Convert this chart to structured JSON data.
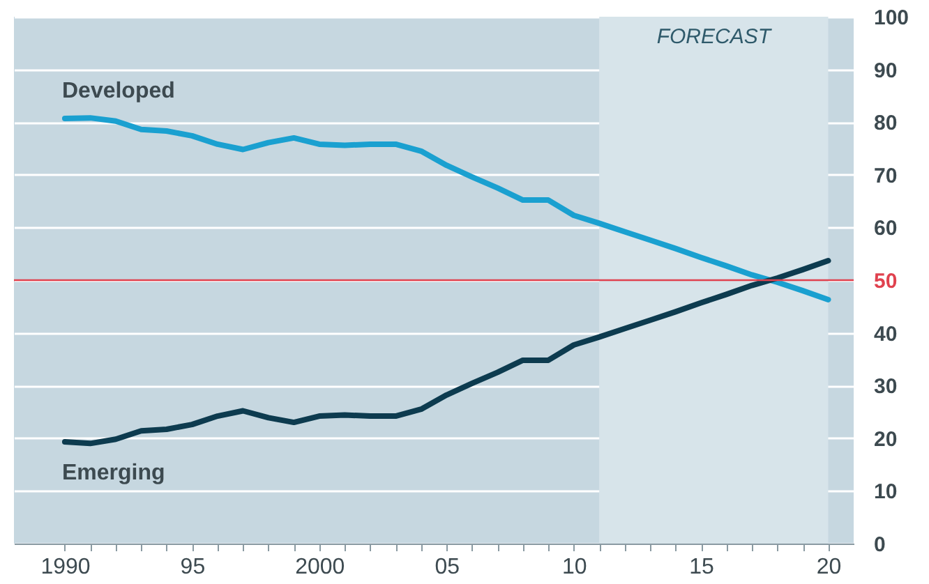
{
  "chart_data": {
    "type": "line",
    "x": [
      1990,
      1991,
      1992,
      1993,
      1994,
      1995,
      1996,
      1997,
      1998,
      1999,
      2000,
      2001,
      2002,
      2003,
      2004,
      2005,
      2006,
      2007,
      2008,
      2009,
      2010,
      2011,
      2012,
      2013,
      2014,
      2015,
      2016,
      2017,
      2018,
      2019,
      2020
    ],
    "series": [
      {
        "name": "Developed",
        "color": "#1aa0d0",
        "values": [
          80.7,
          80.8,
          80.2,
          78.6,
          78.3,
          77.4,
          75.8,
          74.8,
          76.1,
          77,
          75.8,
          75.6,
          75.8,
          75.8,
          74.5,
          71.8,
          69.6,
          67.5,
          65.2,
          65.2,
          62.3,
          60.8,
          59.2,
          57.6,
          56,
          54.3,
          52.7,
          51,
          49.6,
          48,
          46.3
        ]
      },
      {
        "name": "Emerging",
        "color": "#0d3b4f",
        "values": [
          19.3,
          19,
          19.8,
          21.4,
          21.7,
          22.6,
          24.2,
          25.2,
          23.9,
          23,
          24.2,
          24.4,
          24.2,
          24.2,
          25.5,
          28.2,
          30.4,
          32.5,
          34.8,
          34.8,
          37.7,
          39.2,
          40.8,
          42.4,
          44,
          45.7,
          47.3,
          49,
          50.4,
          52,
          53.7
        ]
      }
    ],
    "xlim": [
      1988,
      2021
    ],
    "xticks": [
      {
        "value": 1990,
        "label": "1990"
      },
      {
        "value": 1991,
        "label": null
      },
      {
        "value": 1992,
        "label": null
      },
      {
        "value": 1993,
        "label": null
      },
      {
        "value": 1994,
        "label": null
      },
      {
        "value": 1995,
        "label": "95"
      },
      {
        "value": 1996,
        "label": null
      },
      {
        "value": 1997,
        "label": null
      },
      {
        "value": 1998,
        "label": null
      },
      {
        "value": 1999,
        "label": null
      },
      {
        "value": 2000,
        "label": "2000"
      },
      {
        "value": 2001,
        "label": null
      },
      {
        "value": 2002,
        "label": null
      },
      {
        "value": 2003,
        "label": null
      },
      {
        "value": 2004,
        "label": null
      },
      {
        "value": 2005,
        "label": "05"
      },
      {
        "value": 2006,
        "label": null
      },
      {
        "value": 2007,
        "label": null
      },
      {
        "value": 2008,
        "label": null
      },
      {
        "value": 2009,
        "label": null
      },
      {
        "value": 2010,
        "label": "10"
      },
      {
        "value": 2011,
        "label": null
      },
      {
        "value": 2012,
        "label": null
      },
      {
        "value": 2013,
        "label": null
      },
      {
        "value": 2014,
        "label": null
      },
      {
        "value": 2015,
        "label": "15"
      },
      {
        "value": 2016,
        "label": null
      },
      {
        "value": 2017,
        "label": null
      },
      {
        "value": 2018,
        "label": null
      },
      {
        "value": 2019,
        "label": null
      },
      {
        "value": 2020,
        "label": "20"
      }
    ],
    "ylim": [
      0,
      100
    ],
    "yticks": [
      0,
      10,
      20,
      30,
      40,
      50,
      60,
      70,
      80,
      90,
      100
    ],
    "grid": "y",
    "legend": false,
    "ref_lines": [
      {
        "axis": "y",
        "value": 50,
        "color": "#e0424f"
      }
    ],
    "bands": [
      {
        "axis": "x",
        "from": 2011,
        "to": 2020,
        "label": "FORECAST",
        "color": "#d7e4ea"
      }
    ]
  }
}
